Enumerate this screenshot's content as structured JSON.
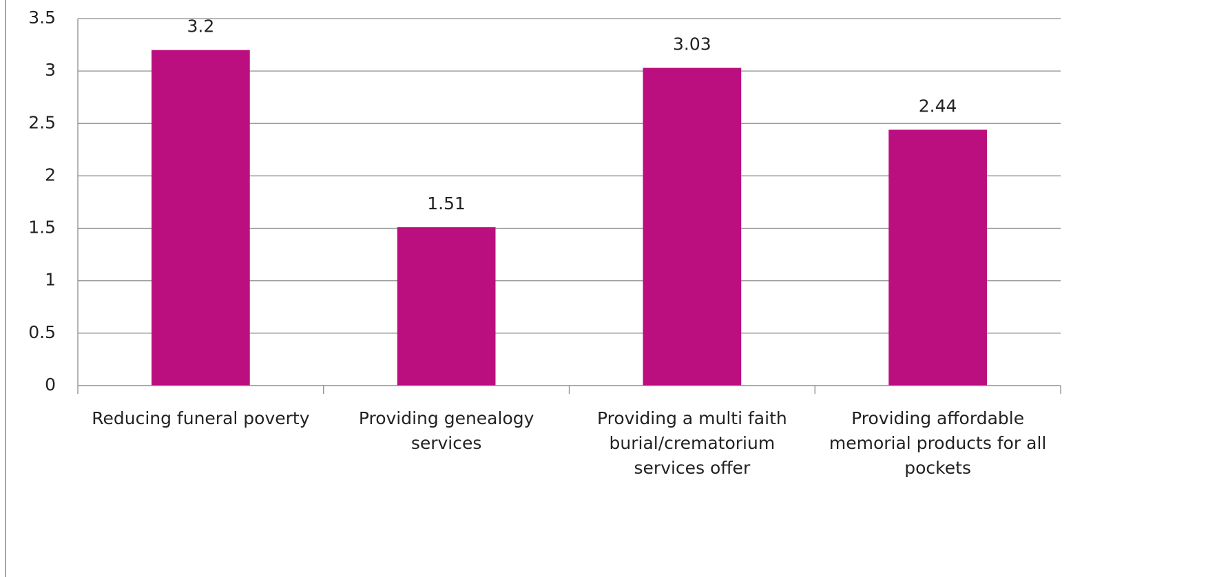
{
  "chart_data": {
    "type": "bar",
    "categories": [
      "Reducing funeral poverty",
      "Providing genealogy services",
      "Providing a multi faith burial/crematorium services offer",
      "Providing affordable memorial products for all pockets"
    ],
    "values": [
      3.2,
      1.51,
      3.03,
      2.44
    ],
    "color": "#bb0e7f",
    "ylim": [
      0,
      3.5
    ],
    "yticks": [
      0,
      0.5,
      1,
      1.5,
      2,
      2.5,
      3,
      3.5
    ],
    "grid": true
  }
}
